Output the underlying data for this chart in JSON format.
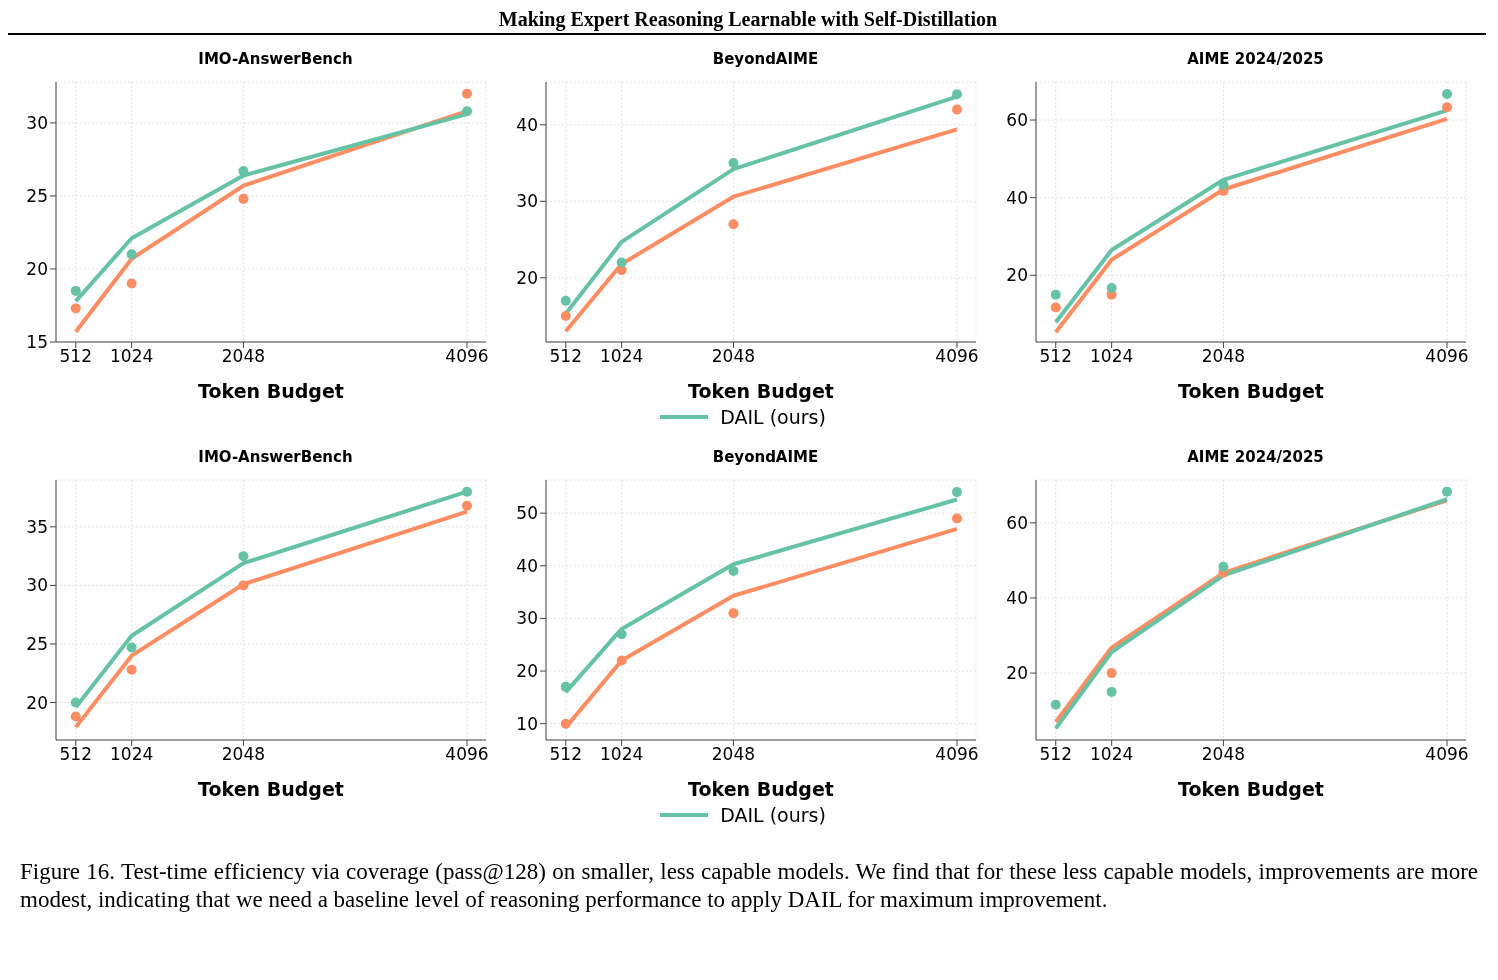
{
  "chart_data": [
    {
      "type": "line",
      "title": "IMO-AnswerBench",
      "xlabel": "Token Budget",
      "x": [
        512,
        1024,
        2048,
        4096
      ],
      "xlim": [
        331,
        4270
      ],
      "xticks": [
        512,
        1024,
        2048,
        4096
      ],
      "ylim": [
        15,
        32.8
      ],
      "yticks": [
        15,
        20,
        25,
        30
      ],
      "grid": true,
      "annotations": [
        "Making Expert Reasoning Learnable with Self-Distillation"
      ],
      "series": [
        {
          "type": "line",
          "color": "#fc8d62",
          "values": [
            15.7,
            20.7,
            25.7,
            30.8
          ]
        },
        {
          "type": "line",
          "color": "#66c2a5",
          "values": [
            17.8,
            22.1,
            26.4,
            30.6
          ]
        },
        {
          "type": "scatter",
          "marker": "circle",
          "color": "#fc8d62",
          "values": [
            17.3,
            19.0,
            24.8,
            32.0
          ]
        },
        {
          "type": "scatter",
          "marker": "circle",
          "color": "#66c2a5",
          "values": [
            18.5,
            21.0,
            26.7,
            30.8
          ]
        }
      ]
    },
    {
      "type": "line",
      "title": "BeyondAIME",
      "xlabel": "Token Budget",
      "x": [
        512,
        1024,
        2048,
        4096
      ],
      "xlim": [
        331,
        4270
      ],
      "xticks": [
        512,
        1024,
        2048,
        4096
      ],
      "ylim": [
        11.6,
        45.6
      ],
      "yticks": [
        20,
        30,
        40
      ],
      "grid": true,
      "legend": "bottom",
      "series": [
        {
          "type": "line",
          "color": "#fc8d62",
          "values": [
            13.0,
            21.8,
            30.6,
            39.4
          ]
        },
        {
          "type": "line",
          "name": "DAIL (ours)",
          "color": "#66c2a5",
          "values": [
            15.3,
            24.7,
            34.2,
            43.7
          ]
        },
        {
          "type": "scatter",
          "marker": "circle",
          "color": "#fc8d62",
          "values": [
            15.0,
            21.0,
            27.0,
            42.0
          ]
        },
        {
          "type": "scatter",
          "marker": "circle",
          "color": "#66c2a5",
          "values": [
            17.0,
            22.0,
            35.0,
            44.0
          ]
        }
      ]
    },
    {
      "type": "line",
      "title": "AIME 2024/2025",
      "xlabel": "Token Budget",
      "x": [
        512,
        1024,
        2048,
        4096
      ],
      "xlim": [
        331,
        4270
      ],
      "xticks": [
        512,
        1024,
        2048,
        4096
      ],
      "ylim": [
        2.8,
        69.8
      ],
      "yticks": [
        20,
        40,
        60
      ],
      "grid": true,
      "series": [
        {
          "type": "line",
          "color": "#fc8d62",
          "values": [
            5.3,
            24.0,
            42.1,
            60.3
          ]
        },
        {
          "type": "line",
          "color": "#66c2a5",
          "values": [
            7.9,
            26.5,
            44.6,
            62.5
          ]
        },
        {
          "type": "scatter",
          "marker": "circle",
          "color": "#fc8d62",
          "values": [
            11.7,
            15.0,
            41.7,
            63.3
          ]
        },
        {
          "type": "scatter",
          "marker": "circle",
          "color": "#66c2a5",
          "values": [
            15.0,
            16.7,
            43.3,
            66.7
          ]
        }
      ]
    },
    {
      "type": "line",
      "title": "IMO-AnswerBench",
      "xlabel": "Token Budget",
      "x": [
        512,
        1024,
        2048,
        4096
      ],
      "xlim": [
        331,
        4270
      ],
      "xticks": [
        512,
        1024,
        2048,
        4096
      ],
      "ylim": [
        16.8,
        39.0
      ],
      "yticks": [
        20,
        25,
        30,
        35
      ],
      "grid": true,
      "series": [
        {
          "type": "line",
          "color": "#fc8d62",
          "values": [
            17.9,
            24.0,
            30.1,
            36.3
          ]
        },
        {
          "type": "line",
          "color": "#66c2a5",
          "values": [
            19.6,
            25.7,
            31.9,
            38.0
          ]
        },
        {
          "type": "scatter",
          "marker": "circle",
          "color": "#fc8d62",
          "values": [
            18.8,
            22.8,
            30.0,
            36.8
          ]
        },
        {
          "type": "scatter",
          "marker": "circle",
          "color": "#66c2a5",
          "values": [
            20.0,
            24.7,
            32.5,
            38.0
          ]
        }
      ]
    },
    {
      "type": "line",
      "title": "BeyondAIME",
      "xlabel": "Token Budget",
      "x": [
        512,
        1024,
        2048,
        4096
      ],
      "xlim": [
        331,
        4270
      ],
      "xticks": [
        512,
        1024,
        2048,
        4096
      ],
      "ylim": [
        6.9,
        56.3
      ],
      "yticks": [
        10,
        20,
        30,
        40,
        50
      ],
      "grid": true,
      "legend": "bottom",
      "series": [
        {
          "type": "line",
          "color": "#fc8d62",
          "values": [
            9.3,
            22.0,
            34.3,
            47.0
          ]
        },
        {
          "type": "line",
          "name": "DAIL (ours)",
          "color": "#66c2a5",
          "values": [
            16.0,
            28.0,
            40.3,
            52.6
          ]
        },
        {
          "type": "scatter",
          "marker": "circle",
          "color": "#fc8d62",
          "values": [
            10.0,
            22.0,
            31.0,
            49.0
          ]
        },
        {
          "type": "scatter",
          "marker": "circle",
          "color": "#66c2a5",
          "values": [
            17.0,
            27.0,
            39.0,
            54.0
          ]
        }
      ]
    },
    {
      "type": "line",
      "title": "AIME 2024/2025",
      "xlabel": "Token Budget",
      "x": [
        512,
        1024,
        2048,
        4096
      ],
      "xlim": [
        331,
        4270
      ],
      "xticks": [
        512,
        1024,
        2048,
        4096
      ],
      "ylim": [
        2.2,
        71.4
      ],
      "yticks": [
        20,
        40,
        60
      ],
      "grid": true,
      "annotations": [
        "Figure 16. Test-time efficiency via coverage (pass@128) on smaller, less capable models. We find that for these less capable models, improvements are more modest, indicating that we need a baseline level of reasoning performance to apply DAIL for maximum improvement."
      ],
      "series": [
        {
          "type": "line",
          "color": "#fc8d62",
          "values": [
            7.0,
            26.8,
            46.7,
            66.0
          ]
        },
        {
          "type": "line",
          "color": "#66c2a5",
          "values": [
            5.3,
            25.6,
            46.0,
            66.3
          ]
        },
        {
          "type": "scatter",
          "marker": "circle",
          "color": "#fc8d62",
          "values": [
            null,
            20.0,
            46.7,
            null
          ]
        },
        {
          "type": "scatter",
          "marker": "circle",
          "color": "#66c2a5",
          "values": [
            11.6,
            15.0,
            48.3,
            68.3
          ]
        }
      ]
    }
  ]
}
